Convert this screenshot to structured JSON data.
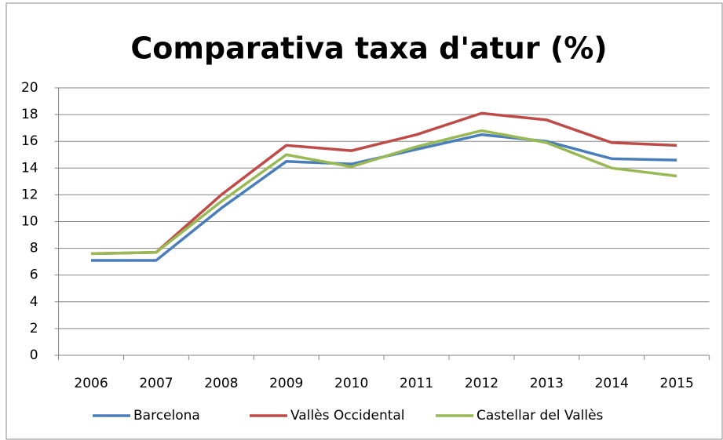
{
  "chart_data": {
    "type": "line",
    "title": "Comparativa taxa d'atur (%)",
    "categories": [
      "2006",
      "2007",
      "2008",
      "2009",
      "2010",
      "2011",
      "2012",
      "2013",
      "2014",
      "2015"
    ],
    "series": [
      {
        "name": "Barcelona",
        "color": "#4a7ebb",
        "values": [
          7.1,
          7.1,
          11.0,
          14.5,
          14.3,
          15.4,
          16.5,
          16.0,
          14.7,
          14.6
        ]
      },
      {
        "name": "Vallès Occidental",
        "color": "#be4b48",
        "values": [
          7.6,
          7.7,
          12.0,
          15.7,
          15.3,
          16.5,
          18.1,
          17.6,
          15.9,
          15.7
        ]
      },
      {
        "name": "Castellar del Vallès",
        "color": "#98b954",
        "values": [
          7.6,
          7.7,
          11.5,
          15.0,
          14.1,
          15.6,
          16.8,
          15.9,
          14.0,
          13.4
        ]
      }
    ],
    "ylim": [
      0,
      20
    ],
    "yticks": [
      0,
      2,
      4,
      6,
      8,
      10,
      12,
      14,
      16,
      18,
      20
    ],
    "grid": true,
    "legend": "bottom"
  }
}
